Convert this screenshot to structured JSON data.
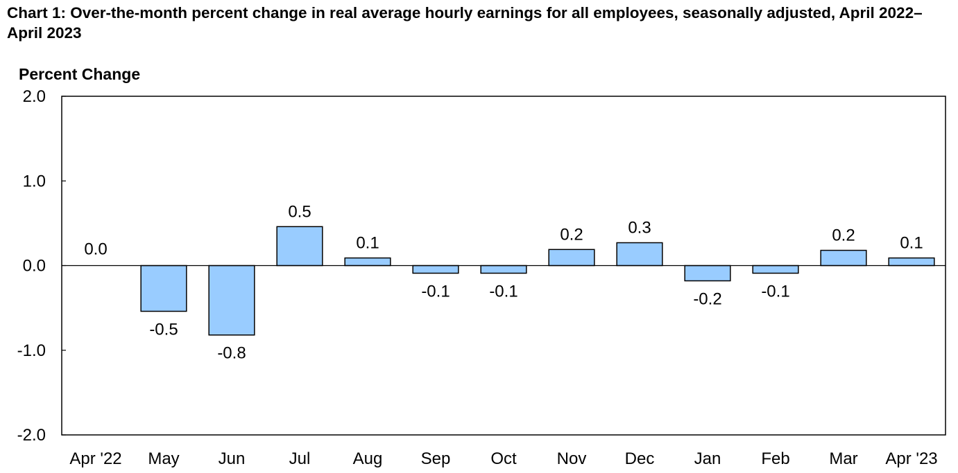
{
  "chart_data": {
    "type": "bar",
    "title": "Chart 1: Over-the-month percent change in real average hourly earnings for all employees, seasonally adjusted, April 2022–April 2023",
    "ylabel": "Percent Change",
    "xlabel": "",
    "ylim": [
      -2.0,
      2.0
    ],
    "yticks": [
      "2.0",
      "1.0",
      "0.0",
      "-1.0",
      "-2.0"
    ],
    "ytick_values": [
      2.0,
      1.0,
      0.0,
      -1.0,
      -2.0
    ],
    "categories": [
      "Apr '22",
      "May",
      "Jun",
      "Jul",
      "Aug",
      "Sep",
      "Oct",
      "Nov",
      "Dec",
      "Jan",
      "Feb",
      "Mar",
      "Apr '23"
    ],
    "values": [
      0.0,
      -0.54,
      -0.82,
      0.46,
      0.09,
      -0.09,
      -0.09,
      0.19,
      0.27,
      -0.18,
      -0.09,
      0.18,
      0.09
    ],
    "labels": [
      "0.0",
      "-0.5",
      "-0.8",
      "0.5",
      "0.1",
      "-0.1",
      "-0.1",
      "0.2",
      "0.3",
      "-0.2",
      "-0.1",
      "0.2",
      "0.1"
    ],
    "grid": false,
    "legend": "none",
    "bar_color": "#99ccff",
    "bar_edge_color": "#000000"
  }
}
